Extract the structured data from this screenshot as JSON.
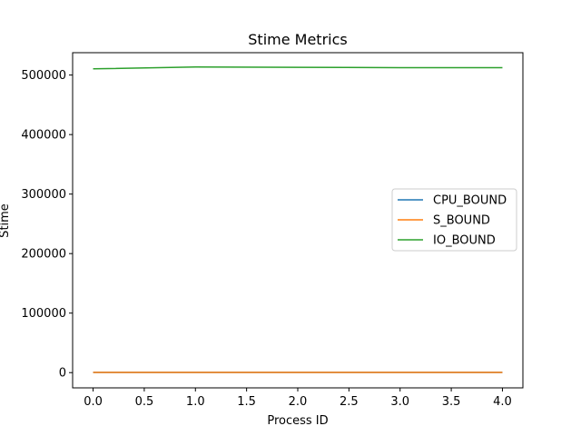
{
  "chart_data": {
    "type": "line",
    "title": "Stime Metrics",
    "xlabel": "Process ID",
    "ylabel": "Stime",
    "x": [
      0,
      1,
      2,
      3,
      4
    ],
    "xlim": [
      -0.2,
      4.2
    ],
    "ylim": [
      -25600,
      537600
    ],
    "xticks": [
      0.0,
      0.5,
      1.0,
      1.5,
      2.0,
      2.5,
      3.0,
      3.5,
      4.0
    ],
    "xtick_labels": [
      "0.0",
      "0.5",
      "1.0",
      "1.5",
      "2.0",
      "2.5",
      "3.0",
      "3.5",
      "4.0"
    ],
    "yticks": [
      0,
      100000,
      200000,
      300000,
      400000,
      500000
    ],
    "ytick_labels": [
      "0",
      "100000",
      "200000",
      "300000",
      "400000",
      "500000"
    ],
    "grid": false,
    "legend_position": "center-right",
    "series": [
      {
        "name": "CPU_BOUND",
        "color": "#1f77b4",
        "values": [
          300,
          300,
          300,
          300,
          300
        ]
      },
      {
        "name": "S_BOUND",
        "color": "#ff7f0e",
        "values": [
          400,
          400,
          400,
          400,
          400
        ]
      },
      {
        "name": "IO_BOUND",
        "color": "#2ca02c",
        "values": [
          510500,
          513500,
          513000,
          512500,
          512500
        ]
      }
    ]
  }
}
